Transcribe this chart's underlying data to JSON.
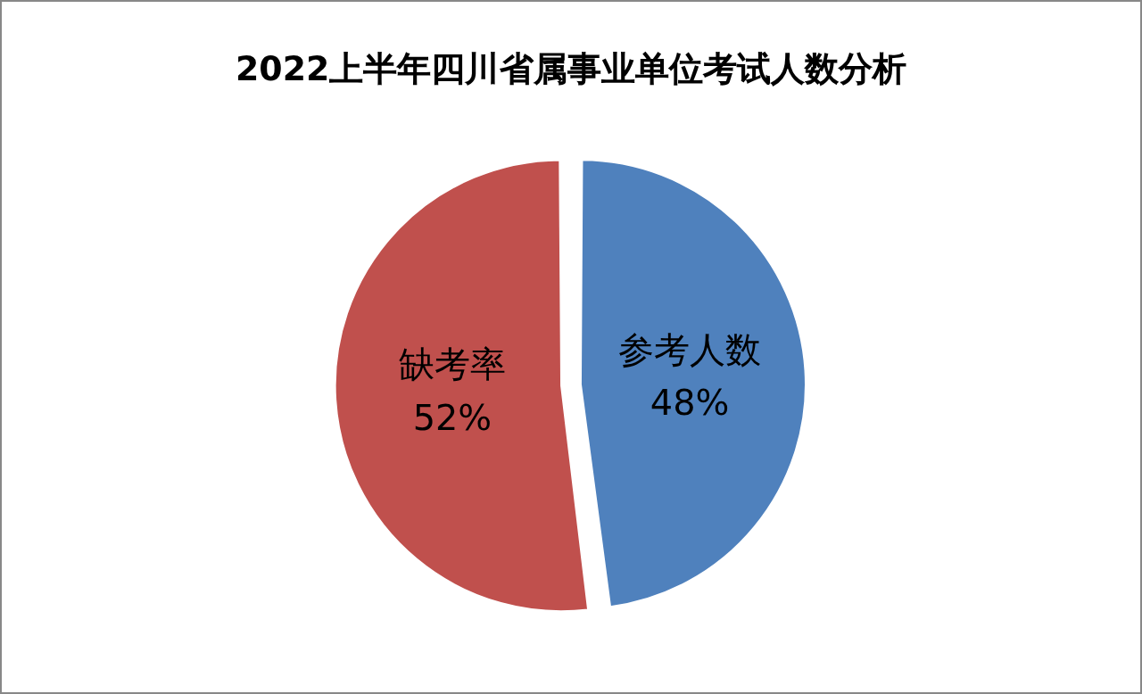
{
  "chart_data": {
    "type": "pie",
    "title": "2022上半年四川省属事业单位考试人数分析",
    "categories": [
      "参考人数",
      "缺考率"
    ],
    "values": [
      48,
      52
    ],
    "colors": [
      "#4f81bd",
      "#c0504d"
    ],
    "value_labels": [
      "48%",
      "52%"
    ],
    "legend": false
  }
}
